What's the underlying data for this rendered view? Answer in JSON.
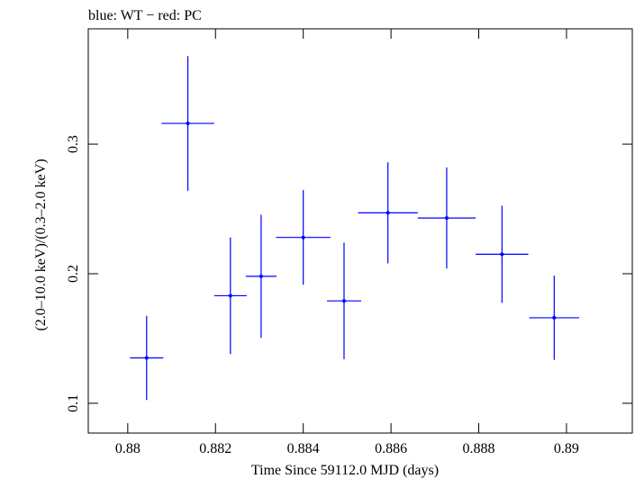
{
  "chart_data": {
    "type": "scatter",
    "title": "blue: WT − red: PC",
    "xlabel": "Time Since 59112.0 MJD (days)",
    "ylabel": "(2.0–10.0 keV)/(0.3–2.0 keV)",
    "xlim": [
      0.8791,
      0.8915
    ],
    "ylim": [
      0.077,
      0.389
    ],
    "x_ticks": [
      0.88,
      0.882,
      0.884,
      0.886,
      0.888,
      0.89
    ],
    "x_tick_labels": [
      "0.88",
      "0.882",
      "0.884",
      "0.886",
      "0.888",
      "0.89"
    ],
    "y_ticks": [
      0.1,
      0.2,
      0.3
    ],
    "y_tick_labels": [
      "0.1",
      "0.2",
      "0.3"
    ],
    "grid": false,
    "series": [
      {
        "name": "WT",
        "color": "#0000ff",
        "points": [
          {
            "x": 0.88043,
            "xerr": 0.00038,
            "y": 0.135,
            "yerr": 0.0325
          },
          {
            "x": 0.88137,
            "xerr": 0.0006,
            "y": 0.316,
            "yerr": 0.052
          },
          {
            "x": 0.88234,
            "xerr": 0.00037,
            "y": 0.183,
            "yerr": 0.045
          },
          {
            "x": 0.88304,
            "xerr": 0.00035,
            "y": 0.198,
            "yerr": 0.0475
          },
          {
            "x": 0.884,
            "xerr": 0.00062,
            "y": 0.228,
            "yerr": 0.0365
          },
          {
            "x": 0.88493,
            "xerr": 0.00039,
            "y": 0.179,
            "yerr": 0.045
          },
          {
            "x": 0.88593,
            "xerr": 0.00068,
            "y": 0.247,
            "yerr": 0.039
          },
          {
            "x": 0.88727,
            "xerr": 0.00066,
            "y": 0.243,
            "yerr": 0.039
          },
          {
            "x": 0.88853,
            "xerr": 0.0006,
            "y": 0.215,
            "yerr": 0.0375
          },
          {
            "x": 0.88972,
            "xerr": 0.00057,
            "y": 0.166,
            "yerr": 0.0325
          }
        ]
      }
    ]
  }
}
